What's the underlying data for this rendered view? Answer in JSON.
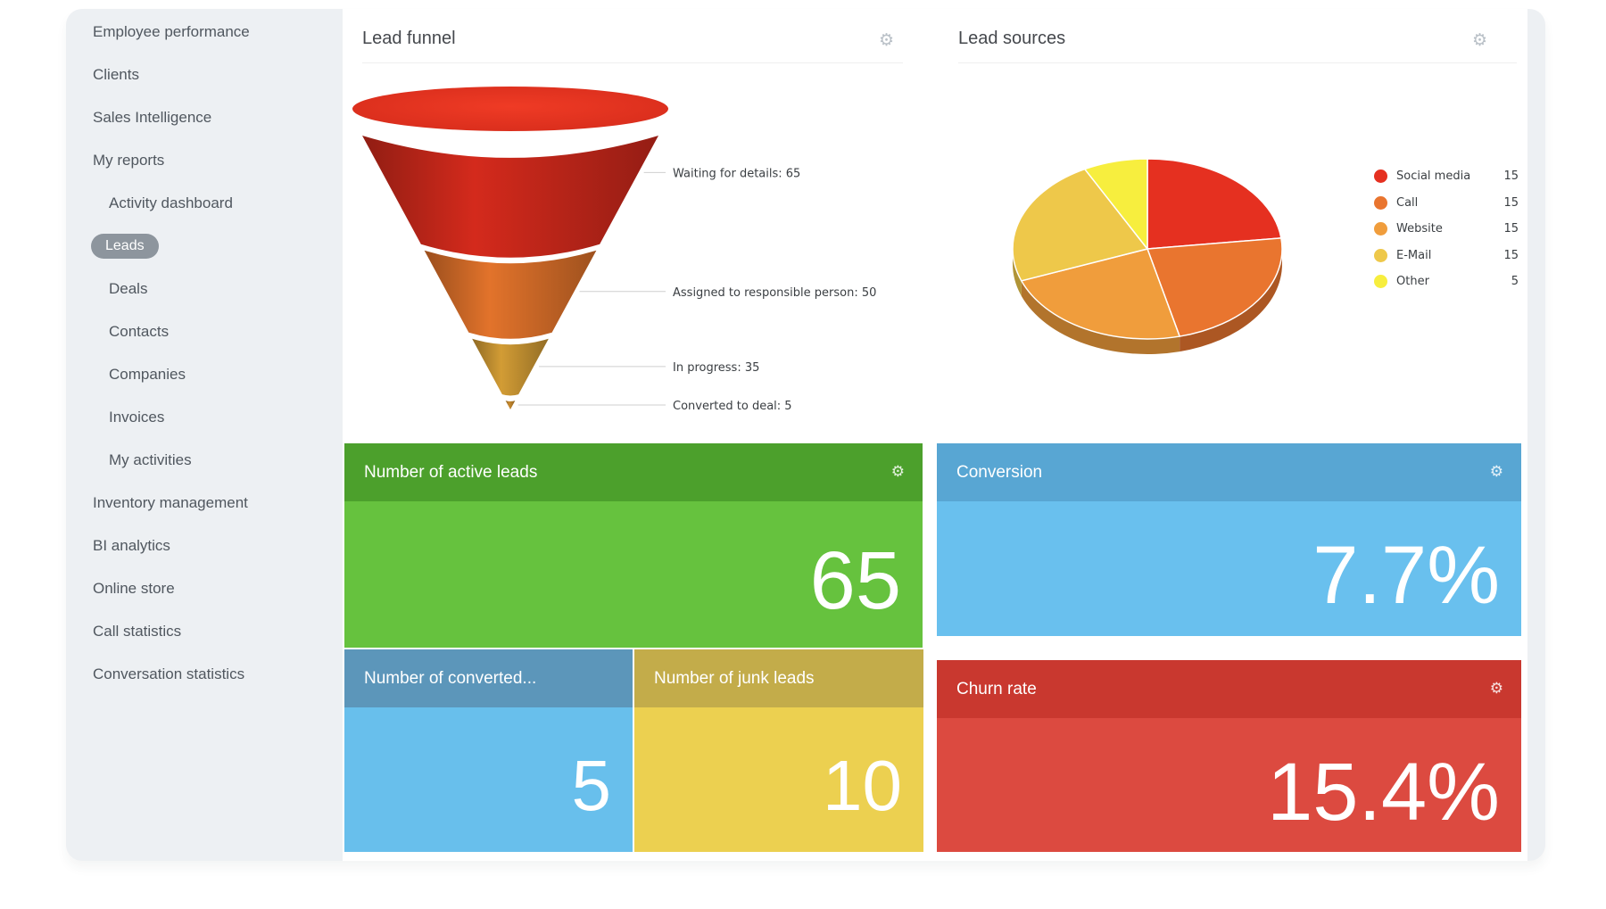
{
  "icons": {
    "gear": "⚙"
  },
  "sidebar": {
    "active_pill_color": "#8d959d",
    "items": [
      {
        "label": "Employee performance",
        "indent": false,
        "active": false
      },
      {
        "label": "Clients",
        "indent": false,
        "active": false
      },
      {
        "label": "Sales Intelligence",
        "indent": false,
        "active": false
      },
      {
        "label": "My reports",
        "indent": false,
        "active": false
      },
      {
        "label": "Activity dashboard",
        "indent": true,
        "active": false
      },
      {
        "label": "Leads",
        "indent": true,
        "active": true
      },
      {
        "label": "Deals",
        "indent": true,
        "active": false
      },
      {
        "label": "Contacts",
        "indent": true,
        "active": false
      },
      {
        "label": "Companies",
        "indent": true,
        "active": false
      },
      {
        "label": "Invoices",
        "indent": true,
        "active": false
      },
      {
        "label": "My activities",
        "indent": true,
        "active": false
      },
      {
        "label": "Inventory management",
        "indent": false,
        "active": false
      },
      {
        "label": "BI analytics",
        "indent": false,
        "active": false
      },
      {
        "label": "Online store",
        "indent": false,
        "active": false
      },
      {
        "label": "Call statistics",
        "indent": false,
        "active": false
      },
      {
        "label": "Conversation statistics",
        "indent": false,
        "active": false
      }
    ]
  },
  "widgets": {
    "lead_funnel": {
      "title": "Lead funnel"
    },
    "lead_sources": {
      "title": "Lead sources"
    }
  },
  "chart_data": [
    {
      "type": "funnel",
      "title": "Lead funnel",
      "label_format": "{label}: {value}",
      "points": [
        {
          "label": "Waiting for details",
          "value": 65,
          "color": "#d42a1c"
        },
        {
          "label": "Assigned to responsible person",
          "value": 50,
          "color": "#e2732b"
        },
        {
          "label": "In progress",
          "value": 35,
          "color": "#d29c35"
        },
        {
          "label": "Converted to deal",
          "value": 5,
          "color": "#c98b2e"
        }
      ]
    },
    {
      "type": "pie",
      "title": "Lead sources",
      "style": "3d",
      "legend_position": "right",
      "slices": [
        {
          "label": "Social media",
          "value": 15,
          "color": "#e53020"
        },
        {
          "label": "Call",
          "value": 15,
          "color": "#e9752f"
        },
        {
          "label": "Website",
          "value": 15,
          "color": "#f09d3c"
        },
        {
          "label": "E-Mail",
          "value": 15,
          "color": "#eec84a"
        },
        {
          "label": "Other",
          "value": 5,
          "color": "#f7ee3e"
        }
      ]
    }
  ],
  "tiles": [
    {
      "title": "Number of active leads",
      "value": "65",
      "header_color": "#4ca02c",
      "body_color": "#66c23e",
      "has_gear": true
    },
    {
      "title": "Conversion",
      "value": "7.7%",
      "header_color": "#58a6d3",
      "body_color": "#69c0ee",
      "has_gear": true
    },
    {
      "title": "Number of converted...",
      "value": "5",
      "header_color": "#5c96ba",
      "body_color": "#68bfec",
      "has_gear": false
    },
    {
      "title": "Number of junk leads",
      "value": "10",
      "header_color": "#c3ac4a",
      "body_color": "#ecd050",
      "has_gear": false
    },
    {
      "title": "Churn rate",
      "value": "15.4%",
      "header_color": "#c9382f",
      "body_color": "#dc4a40",
      "has_gear": true
    }
  ]
}
